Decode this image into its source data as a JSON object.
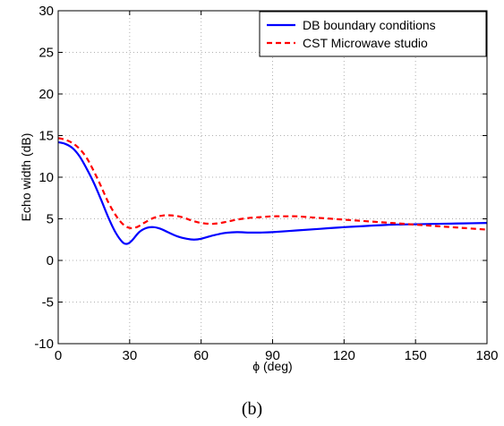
{
  "caption": "(b)",
  "chart_data": {
    "type": "line",
    "title": "",
    "xlabel": "ϕ (deg)",
    "ylabel": "Echo width (dB)",
    "xlim": [
      0,
      180
    ],
    "ylim": [
      -10,
      30
    ],
    "xticks": [
      0,
      30,
      60,
      90,
      120,
      150,
      180
    ],
    "yticks": [
      -10,
      -5,
      0,
      5,
      10,
      15,
      20,
      25,
      30
    ],
    "grid": true,
    "legend_position": "top-right",
    "series": [
      {
        "name": "DB boundary conditions",
        "color": "#0000ff",
        "style": "solid",
        "x": [
          0,
          3,
          6,
          9,
          12,
          15,
          18,
          21,
          24,
          27,
          29,
          31,
          34,
          37,
          40,
          43,
          46,
          50,
          54,
          57,
          60,
          65,
          70,
          75,
          80,
          85,
          90,
          100,
          110,
          120,
          130,
          140,
          150,
          160,
          170,
          180
        ],
        "y": [
          14.2,
          14.0,
          13.5,
          12.5,
          11.0,
          9.3,
          7.3,
          5.2,
          3.4,
          2.2,
          2.0,
          2.4,
          3.4,
          3.9,
          4.0,
          3.8,
          3.4,
          2.9,
          2.6,
          2.5,
          2.6,
          3.0,
          3.3,
          3.4,
          3.35,
          3.35,
          3.4,
          3.6,
          3.8,
          4.0,
          4.15,
          4.3,
          4.35,
          4.4,
          4.45,
          4.5
        ]
      },
      {
        "name": "CST Microwave studio",
        "color": "#ff0000",
        "style": "dashed",
        "x": [
          0,
          3,
          6,
          9,
          12,
          15,
          18,
          21,
          24,
          27,
          30,
          33,
          36,
          40,
          44,
          48,
          52,
          56,
          60,
          65,
          70,
          75,
          80,
          85,
          90,
          95,
          100,
          105,
          110,
          120,
          130,
          140,
          150,
          160,
          170,
          180
        ],
        "y": [
          14.7,
          14.5,
          14.1,
          13.4,
          12.3,
          10.7,
          8.9,
          7.0,
          5.5,
          4.4,
          3.9,
          4.0,
          4.5,
          5.1,
          5.4,
          5.4,
          5.2,
          4.8,
          4.5,
          4.4,
          4.6,
          4.9,
          5.1,
          5.2,
          5.3,
          5.3,
          5.3,
          5.2,
          5.1,
          4.9,
          4.7,
          4.5,
          4.3,
          4.1,
          3.9,
          3.7
        ]
      }
    ]
  }
}
